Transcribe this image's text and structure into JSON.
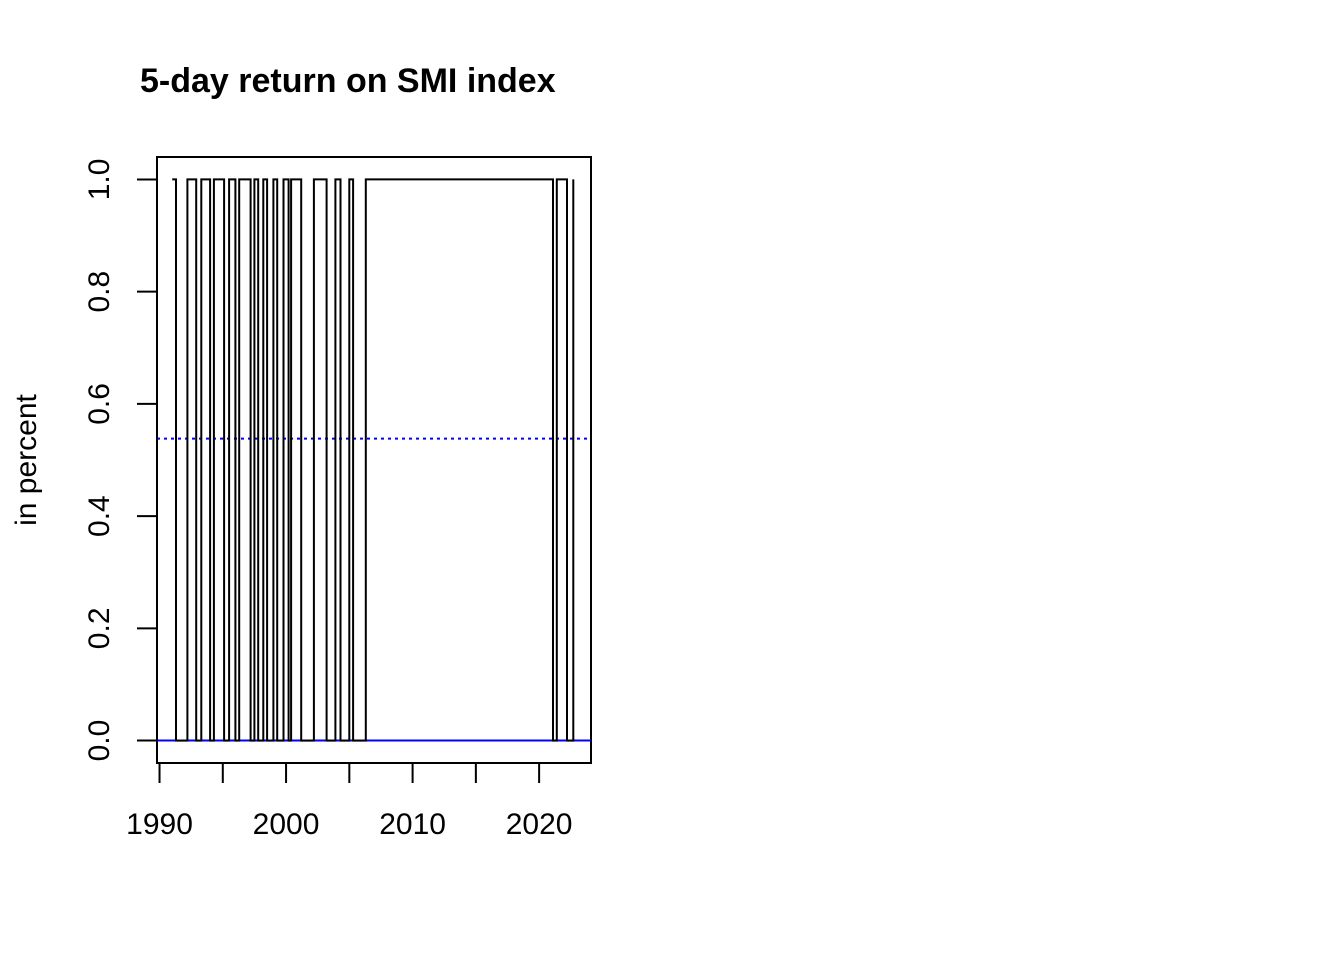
{
  "chart_data": {
    "type": "line",
    "title": "5-day return on SMI index",
    "xlabel": "",
    "ylabel": "in percent",
    "xlim": [
      1989.8,
      2024.1
    ],
    "ylim": [
      -0.04,
      1.04
    ],
    "x_ticks": [
      1990,
      1995,
      2000,
      2005,
      2010,
      2015,
      2020
    ],
    "x_tick_labels": [
      "1990",
      "2000",
      "2010",
      "2020"
    ],
    "y_ticks": [
      0.0,
      0.2,
      0.4,
      0.6,
      0.8,
      1.0
    ],
    "y_tick_labels": [
      "0.0",
      "0.2",
      "0.4",
      "0.6",
      "0.8",
      "1.0"
    ],
    "grid": false,
    "legend": "none",
    "series": [
      {
        "color": "#000000",
        "style": "step",
        "x": [
          1991.0,
          1991.3,
          1992.2,
          1992.9,
          1993.3,
          1994.0,
          1994.3,
          1995.1,
          1995.5,
          1996.0,
          1996.3,
          1997.2,
          1997.5,
          1997.8,
          1998.2,
          1998.5,
          1999.0,
          1999.3,
          1999.8,
          2000.2,
          2000.4,
          2001.2,
          2002.2,
          2003.2,
          2003.9,
          2004.3,
          2005.0,
          2005.3,
          2006.3,
          2021.1,
          2021.4,
          2022.2,
          2022.7
        ],
        "y": [
          1,
          0,
          1,
          0,
          1,
          0,
          1,
          0,
          1,
          0,
          1,
          0,
          1,
          0,
          1,
          0,
          1,
          0,
          1,
          0,
          1,
          0,
          1,
          0,
          1,
          0,
          1,
          0,
          1,
          0,
          1,
          0,
          1
        ]
      }
    ],
    "reference_lines": [
      {
        "y": 0.0,
        "color": "#0000ff",
        "style": "solid"
      },
      {
        "y": 0.538,
        "color": "#0000ff",
        "style": "dotted"
      }
    ]
  }
}
